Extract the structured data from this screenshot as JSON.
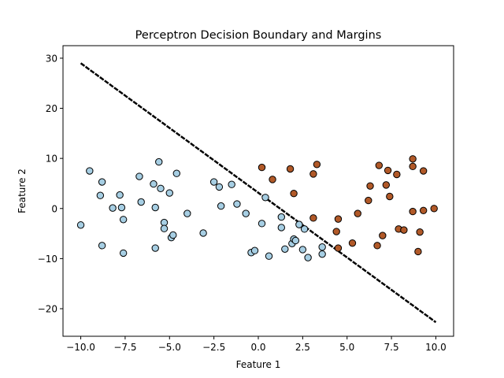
{
  "chart_data": {
    "type": "scatter",
    "title": "Perceptron Decision Boundary and Margins",
    "xlabel": "Feature 1",
    "ylabel": "Feature 2",
    "xlim": [
      -11.0,
      11.0
    ],
    "ylim": [
      -25.5,
      32.5
    ],
    "xticks": [
      -10.0,
      -7.5,
      -5.0,
      -2.5,
      0.0,
      2.5,
      5.0,
      7.5,
      10.0
    ],
    "xtick_labels": [
      "−10.0",
      "−7.5",
      "−5.0",
      "−2.5",
      "0.0",
      "2.5",
      "5.0",
      "7.5",
      "10.0"
    ],
    "yticks": [
      -20,
      -10,
      0,
      10,
      20,
      30
    ],
    "ytick_labels": [
      "−20",
      "−10",
      "0",
      "10",
      "20",
      "30"
    ],
    "grid": false,
    "legend": "none",
    "colors": {
      "class_0": "#a6cee3",
      "class_1": "#b15928",
      "boundary": "#000000",
      "edge": "#000000"
    },
    "boundary_line": {
      "x": [
        -10.0,
        10.0
      ],
      "y": [
        29.0,
        -22.7
      ]
    },
    "series": [
      {
        "color_key": "class_0",
        "points": [
          [
            -10.0,
            -3.3
          ],
          [
            -9.5,
            7.5
          ],
          [
            -8.8,
            5.3
          ],
          [
            -8.9,
            2.6
          ],
          [
            -8.8,
            -7.4
          ],
          [
            -8.2,
            0.1
          ],
          [
            -7.8,
            2.7
          ],
          [
            -7.7,
            0.2
          ],
          [
            -7.6,
            -2.2
          ],
          [
            -7.6,
            -8.9
          ],
          [
            -6.7,
            6.4
          ],
          [
            -6.6,
            1.3
          ],
          [
            -5.9,
            4.9
          ],
          [
            -5.8,
            0.2
          ],
          [
            -5.8,
            -7.9
          ],
          [
            -5.6,
            9.3
          ],
          [
            -5.5,
            4.0
          ],
          [
            -5.3,
            -2.8
          ],
          [
            -5.3,
            -4.0
          ],
          [
            -5.0,
            3.1
          ],
          [
            -4.9,
            -5.8
          ],
          [
            -4.8,
            -5.3
          ],
          [
            -4.6,
            7.0
          ],
          [
            -4.0,
            -1.0
          ],
          [
            -3.1,
            -4.9
          ],
          [
            -2.5,
            5.3
          ],
          [
            -2.2,
            4.3
          ],
          [
            -2.1,
            0.5
          ],
          [
            -1.5,
            4.8
          ],
          [
            -1.2,
            0.9
          ],
          [
            -0.7,
            -1.0
          ],
          [
            -0.4,
            -8.8
          ],
          [
            -0.2,
            -8.4
          ],
          [
            0.2,
            -3.0
          ],
          [
            0.4,
            2.2
          ],
          [
            0.6,
            -9.5
          ],
          [
            1.3,
            -1.7
          ],
          [
            1.3,
            -3.8
          ],
          [
            1.5,
            -8.1
          ],
          [
            1.9,
            -7.0
          ],
          [
            2.0,
            -6.1
          ],
          [
            2.1,
            -6.4
          ],
          [
            2.3,
            -3.2
          ],
          [
            2.5,
            -8.2
          ],
          [
            2.6,
            -4.1
          ],
          [
            2.8,
            -9.8
          ],
          [
            3.6,
            -7.7
          ],
          [
            3.6,
            -9.1
          ]
        ]
      },
      {
        "color_key": "class_1",
        "points": [
          [
            0.2,
            8.2
          ],
          [
            0.8,
            5.8
          ],
          [
            1.8,
            7.9
          ],
          [
            2.0,
            3.0
          ],
          [
            3.1,
            -1.9
          ],
          [
            3.1,
            6.9
          ],
          [
            3.3,
            8.8
          ],
          [
            4.4,
            -4.6
          ],
          [
            4.5,
            -2.1
          ],
          [
            4.5,
            -7.9
          ],
          [
            5.3,
            -6.9
          ],
          [
            5.6,
            -1.0
          ],
          [
            6.2,
            1.6
          ],
          [
            6.3,
            4.5
          ],
          [
            6.7,
            -7.4
          ],
          [
            6.8,
            8.6
          ],
          [
            7.0,
            -5.4
          ],
          [
            7.2,
            4.7
          ],
          [
            7.3,
            7.6
          ],
          [
            7.4,
            2.4
          ],
          [
            7.8,
            6.8
          ],
          [
            7.9,
            -4.1
          ],
          [
            8.2,
            -4.3
          ],
          [
            8.7,
            -0.6
          ],
          [
            8.7,
            9.9
          ],
          [
            8.7,
            8.4
          ],
          [
            9.0,
            -8.6
          ],
          [
            9.1,
            -4.7
          ],
          [
            9.3,
            7.5
          ],
          [
            9.3,
            -0.4
          ],
          [
            9.9,
            0.0
          ]
        ]
      }
    ]
  }
}
